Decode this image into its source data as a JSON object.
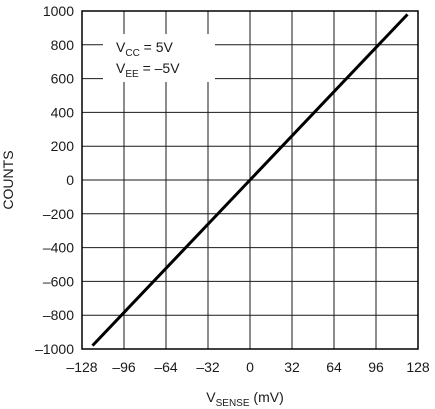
{
  "chart_data": {
    "type": "line",
    "x": [
      -120,
      120
    ],
    "series": [
      {
        "values": [
          -980,
          980
        ]
      }
    ],
    "xlim": [
      -128,
      128
    ],
    "ylim": [
      -1000,
      1000
    ],
    "xticks": [
      -128,
      -96,
      -64,
      -32,
      0,
      32,
      64,
      96,
      128
    ],
    "xtick_labels": [
      "–128",
      "–96",
      "–64",
      "–32",
      "0",
      "32",
      "64",
      "96",
      "128"
    ],
    "yticks": [
      -1000,
      -800,
      -600,
      -400,
      -200,
      0,
      200,
      400,
      600,
      800,
      1000
    ],
    "ytick_labels": [
      "–1000",
      "–800",
      "–600",
      "–400",
      "–200",
      "0",
      "200",
      "400",
      "600",
      "800",
      "1000"
    ],
    "xlabel": {
      "main": "V",
      "sub": "SENSE",
      "unit": " (mV)"
    },
    "ylabel": "COUNTS",
    "grid": true,
    "annotations": [
      {
        "main": "V",
        "sub": "CC",
        "rest": " = 5V"
      },
      {
        "main": "V",
        "sub": "EE",
        "rest": " = –5V"
      }
    ],
    "colors": {
      "line": "#000000",
      "grid": "#1a1a1a",
      "frame": "#000000"
    }
  }
}
